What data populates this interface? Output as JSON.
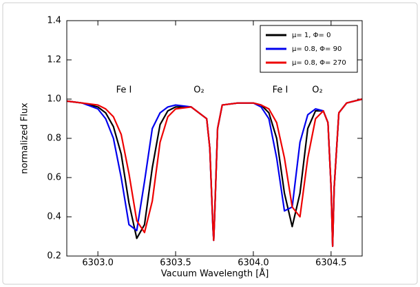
{
  "chart_data": {
    "type": "line",
    "xlabel": "Vacuum Wavelength [Å]",
    "ylabel": "normalized Flux",
    "annotations": [
      "Fe I",
      "O₂",
      "Fe I",
      "O₂"
    ],
    "x": [
      6302.8,
      6302.9,
      6303.0,
      6303.05,
      6303.1,
      6303.15,
      6303.2,
      6303.25,
      6303.3,
      6303.35,
      6303.4,
      6303.45,
      6303.5,
      6303.6,
      6303.7,
      6303.72,
      6303.74,
      6303.745,
      6303.75,
      6303.77,
      6303.8,
      6303.9,
      6304.0,
      6304.05,
      6304.1,
      6304.15,
      6304.2,
      6304.25,
      6304.3,
      6304.35,
      6304.4,
      6304.45,
      6304.48,
      6304.5,
      6304.51,
      6304.52,
      6304.55,
      6304.6,
      6304.7
    ],
    "series": [
      {
        "name": "μ= 1, Φ= 0",
        "color": "#000000",
        "values": [
          0.99,
          0.98,
          0.96,
          0.93,
          0.86,
          0.72,
          0.47,
          0.29,
          0.36,
          0.65,
          0.87,
          0.94,
          0.96,
          0.96,
          0.9,
          0.75,
          0.35,
          0.28,
          0.38,
          0.85,
          0.97,
          0.98,
          0.98,
          0.97,
          0.93,
          0.8,
          0.52,
          0.35,
          0.52,
          0.85,
          0.94,
          0.94,
          0.88,
          0.55,
          0.25,
          0.55,
          0.93,
          0.98,
          1.0
        ]
      },
      {
        "name": "μ= 0.8, Φ= 90",
        "color": "#0000ee",
        "values": [
          0.99,
          0.98,
          0.95,
          0.9,
          0.8,
          0.6,
          0.36,
          0.33,
          0.58,
          0.85,
          0.93,
          0.96,
          0.97,
          0.96,
          0.9,
          0.75,
          0.34,
          0.28,
          0.38,
          0.85,
          0.97,
          0.98,
          0.98,
          0.96,
          0.9,
          0.7,
          0.43,
          0.45,
          0.78,
          0.92,
          0.95,
          0.94,
          0.88,
          0.55,
          0.25,
          0.55,
          0.93,
          0.98,
          1.0
        ]
      },
      {
        "name": "μ= 0.8, Φ= 270",
        "color": "#ee0000",
        "values": [
          0.99,
          0.98,
          0.97,
          0.95,
          0.91,
          0.82,
          0.62,
          0.38,
          0.32,
          0.48,
          0.78,
          0.91,
          0.95,
          0.96,
          0.9,
          0.75,
          0.35,
          0.28,
          0.38,
          0.85,
          0.97,
          0.98,
          0.98,
          0.97,
          0.95,
          0.88,
          0.7,
          0.45,
          0.4,
          0.7,
          0.9,
          0.94,
          0.88,
          0.55,
          0.25,
          0.55,
          0.93,
          0.98,
          1.0
        ]
      }
    ],
    "xlim": [
      6302.8,
      6304.7
    ],
    "ylim": [
      0.2,
      1.4
    ],
    "xticks": [
      {
        "value": 6303,
        "label": "6303.0"
      },
      6303.5,
      {
        "value": 6304,
        "label": "6304.0"
      },
      6304.5
    ],
    "yticks": [
      0.2,
      0.4,
      0.6,
      0.8,
      {
        "value": 1,
        "label": "1.0"
      },
      1.2,
      1.4
    ],
    "grid": false,
    "legend": "upper right"
  }
}
